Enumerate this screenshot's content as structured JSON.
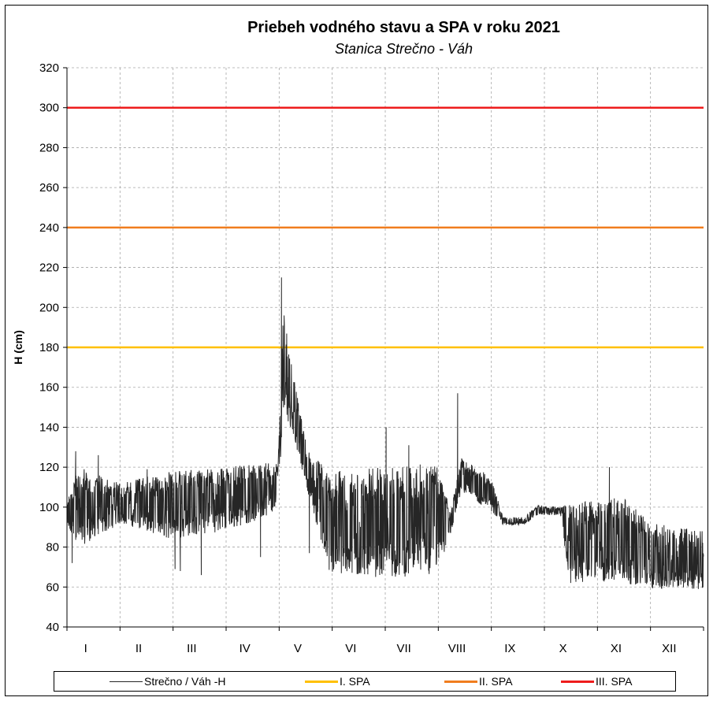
{
  "colors": {
    "water_level": "#262626",
    "spa1": "#ffc000",
    "spa2": "#f07d1e",
    "spa3": "#ee1c1c",
    "grid": "#a6a6a6"
  },
  "chart_data": {
    "type": "line",
    "title": "Priebeh vodného stavu a SPA v roku 2021",
    "subtitle": "Stanica Strečno - Váh",
    "ylabel": "H (cm)",
    "xlabel": "",
    "ylim": [
      40,
      320
    ],
    "yticks": [
      "40",
      "60",
      "80",
      "100",
      "120",
      "140",
      "160",
      "180",
      "200",
      "220",
      "240",
      "260",
      "280",
      "300",
      "320"
    ],
    "categories": [
      "I",
      "II",
      "III",
      "IV",
      "V",
      "VI",
      "VII",
      "VIII",
      "IX",
      "X",
      "XI",
      "XII"
    ],
    "grid": true,
    "legend_position": "bottom",
    "thresholds": [
      {
        "name": "I. SPA",
        "value": 180
      },
      {
        "name": "II. SPA",
        "value": 240
      },
      {
        "name": "III. SPA",
        "value": 300
      }
    ],
    "series": [
      {
        "name": "Strečno / Váh -H",
        "profile": [
          {
            "x": 0,
            "lo": 88,
            "hi": 104
          },
          {
            "x": 7,
            "lo": 80,
            "hi": 120
          },
          {
            "x": 31,
            "lo": 92,
            "hi": 112
          },
          {
            "x": 59,
            "lo": 84,
            "hi": 118
          },
          {
            "x": 90,
            "lo": 88,
            "hi": 120
          },
          {
            "x": 115,
            "lo": 95,
            "hi": 122
          },
          {
            "x": 121,
            "lo": 100,
            "hi": 122
          },
          {
            "x": 124,
            "lo": 150,
            "hi": 200
          },
          {
            "x": 130,
            "lo": 135,
            "hi": 165
          },
          {
            "x": 138,
            "lo": 108,
            "hi": 128
          },
          {
            "x": 151,
            "lo": 65,
            "hi": 118
          },
          {
            "x": 212,
            "lo": 65,
            "hi": 122
          },
          {
            "x": 220,
            "lo": 86,
            "hi": 98
          },
          {
            "x": 226,
            "lo": 108,
            "hi": 125
          },
          {
            "x": 243,
            "lo": 98,
            "hi": 115
          },
          {
            "x": 250,
            "lo": 91,
            "hi": 95
          },
          {
            "x": 262,
            "lo": 91,
            "hi": 95
          },
          {
            "x": 270,
            "lo": 96,
            "hi": 101
          },
          {
            "x": 283,
            "lo": 96,
            "hi": 100
          },
          {
            "x": 288,
            "lo": 62,
            "hi": 102
          },
          {
            "x": 320,
            "lo": 62,
            "hi": 105
          },
          {
            "x": 335,
            "lo": 59,
            "hi": 92
          },
          {
            "x": 365,
            "lo": 59,
            "hi": 88
          }
        ],
        "peaks": [
          {
            "x": 3,
            "y": 72
          },
          {
            "x": 5,
            "y": 128
          },
          {
            "x": 18,
            "y": 126
          },
          {
            "x": 46,
            "y": 119
          },
          {
            "x": 62,
            "y": 69
          },
          {
            "x": 65,
            "y": 68
          },
          {
            "x": 77,
            "y": 66
          },
          {
            "x": 111,
            "y": 75
          },
          {
            "x": 123,
            "y": 215
          },
          {
            "x": 124.5,
            "y": 180
          },
          {
            "x": 127,
            "y": 165
          },
          {
            "x": 139,
            "y": 77
          },
          {
            "x": 183,
            "y": 140
          },
          {
            "x": 196,
            "y": 131
          },
          {
            "x": 224,
            "y": 157
          },
          {
            "x": 311,
            "y": 120
          }
        ]
      }
    ]
  }
}
